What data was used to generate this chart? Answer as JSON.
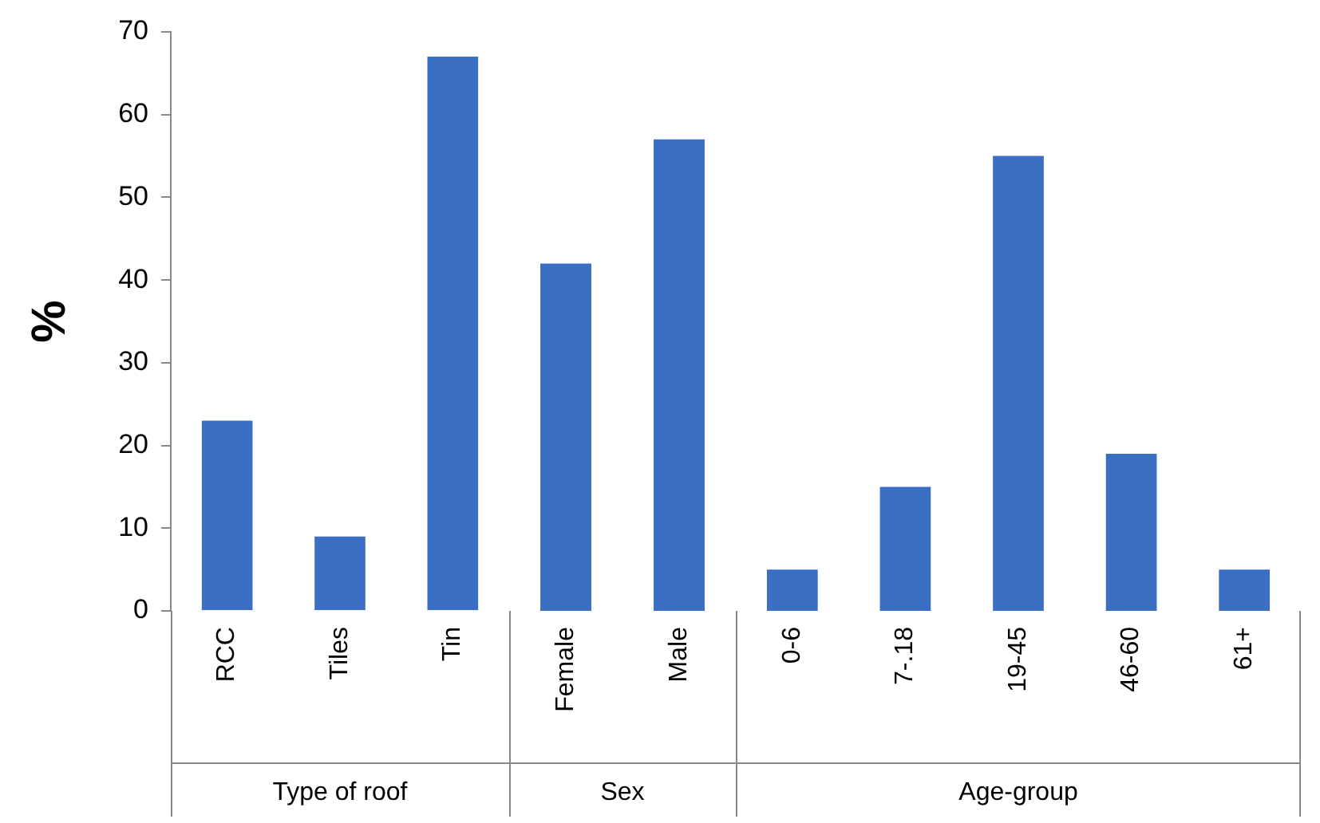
{
  "chart_data": [
    {
      "type": "bar",
      "xlabel": "Type of roof",
      "ylabel": "%",
      "categories": [
        "RCC",
        "Tiles",
        "Tin"
      ],
      "values": [
        23,
        9,
        67
      ],
      "color": "#3a6fc4",
      "ylim": [
        0,
        70
      ],
      "yticks": [
        0,
        10,
        20,
        30,
        40,
        50,
        60,
        70
      ],
      "grid": false,
      "legend": false
    },
    {
      "type": "bar",
      "xlabel": "Sex",
      "categories": [
        "Female",
        "Male"
      ],
      "values": [
        42,
        57
      ],
      "color": "#3a6fc4",
      "ylim": [
        0,
        70
      ],
      "tick_labels": "x",
      "grid": false,
      "legend": false
    },
    {
      "type": "bar",
      "xlabel": "Age-group",
      "categories": [
        "0-6",
        "7-.18",
        "19-45",
        "46-60",
        "61+"
      ],
      "values": [
        5,
        15,
        55,
        19,
        5
      ],
      "color": "#3a6fc4",
      "ylim": [
        0,
        70
      ],
      "tick_labels": "x",
      "grid": false,
      "legend": false
    }
  ]
}
